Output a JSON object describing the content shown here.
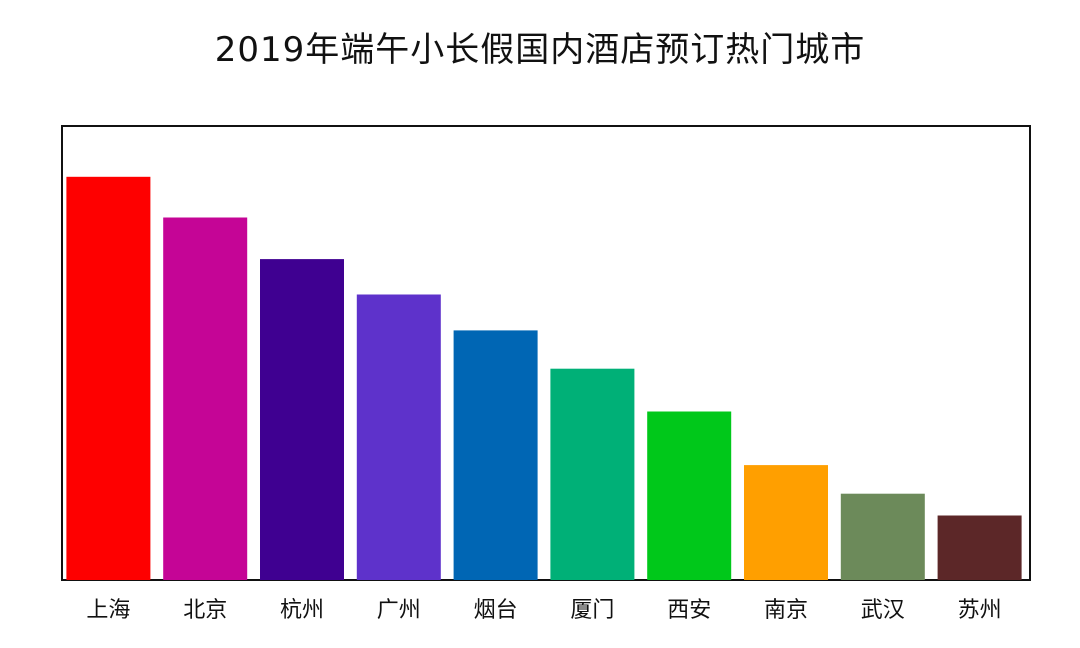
{
  "chart_data": {
    "type": "bar",
    "title": "2019年端午小长假国内酒店预订热门城市",
    "xlabel": "",
    "ylabel": "",
    "categories": [
      "上海",
      "北京",
      "杭州",
      "广州",
      "烟台",
      "厦门",
      "西安",
      "南京",
      "武汉",
      "苏州"
    ],
    "values": [
      100,
      89.9,
      79.6,
      70.8,
      61.9,
      52.4,
      41.8,
      28.5,
      21.4,
      16.0
    ],
    "colors": [
      "#fe0000",
      "#c50596",
      "#3f0091",
      "#5e32cb",
      "#0066b4",
      "#00b077",
      "#00c81a",
      "#ff9f00",
      "#6c8a5a",
      "#5c2728"
    ],
    "ylim": [
      0,
      112.6
    ],
    "grid": false,
    "legend": "none",
    "y_axis_visible": false,
    "note": "Y-axis has no tick labels; values are relative heights normalized to the tallest bar (上海 = 100)."
  }
}
